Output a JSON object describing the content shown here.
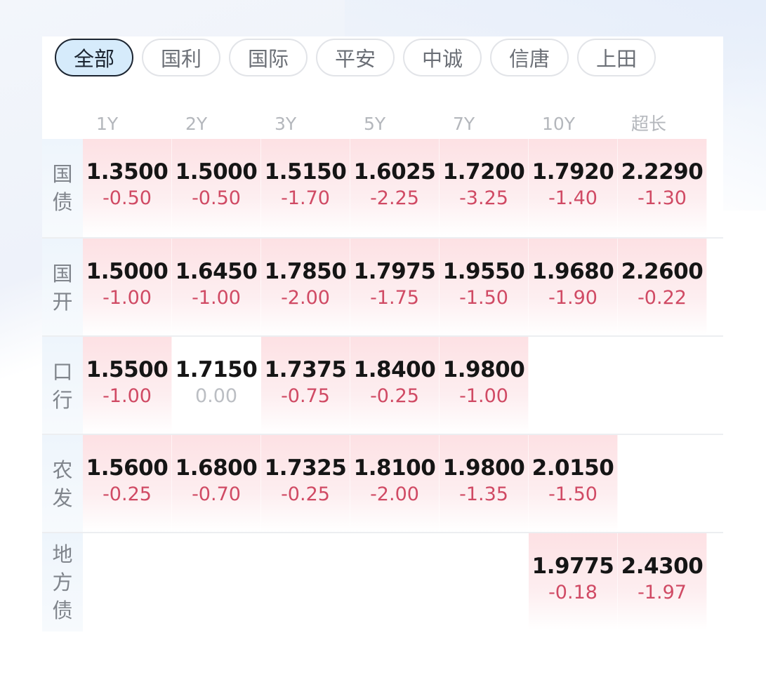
{
  "tabs": [
    {
      "label": "全部",
      "active": true
    },
    {
      "label": "国利"
    },
    {
      "label": "国际"
    },
    {
      "label": "平安"
    },
    {
      "label": "中诚"
    },
    {
      "label": "信唐"
    },
    {
      "label": "上田"
    }
  ],
  "columns": [
    "1Y",
    "2Y",
    "3Y",
    "5Y",
    "7Y",
    "10Y",
    "超长"
  ],
  "colors": {
    "up_bg": "#fde1e4",
    "change": "#d04a64",
    "flat": "#bbbec3"
  },
  "rows": [
    {
      "label": "国债",
      "cells": [
        {
          "v": "1.3500",
          "c": "-0.50"
        },
        {
          "v": "1.5000",
          "c": "-0.50"
        },
        {
          "v": "1.5150",
          "c": "-1.70"
        },
        {
          "v": "1.6025",
          "c": "-2.25"
        },
        {
          "v": "1.7200",
          "c": "-3.25"
        },
        {
          "v": "1.7920",
          "c": "-1.40"
        },
        {
          "v": "2.2290",
          "c": "-1.30"
        }
      ]
    },
    {
      "label": "国开",
      "cells": [
        {
          "v": "1.5000",
          "c": "-1.00"
        },
        {
          "v": "1.6450",
          "c": "-1.00"
        },
        {
          "v": "1.7850",
          "c": "-2.00"
        },
        {
          "v": "1.7975",
          "c": "-1.75"
        },
        {
          "v": "1.9550",
          "c": "-1.50"
        },
        {
          "v": "1.9680",
          "c": "-1.90"
        },
        {
          "v": "2.2600",
          "c": "-0.22"
        }
      ]
    },
    {
      "label": "口行",
      "cells": [
        {
          "v": "1.5500",
          "c": "-1.00"
        },
        {
          "v": "1.7150",
          "c": "0.00"
        },
        {
          "v": "1.7375",
          "c": "-0.75"
        },
        {
          "v": "1.8400",
          "c": "-0.25"
        },
        {
          "v": "1.9800",
          "c": "-1.00"
        },
        null,
        null
      ]
    },
    {
      "label": "农发",
      "cells": [
        {
          "v": "1.5600",
          "c": "-0.25"
        },
        {
          "v": "1.6800",
          "c": "-0.70"
        },
        {
          "v": "1.7325",
          "c": "-0.25"
        },
        {
          "v": "1.8100",
          "c": "-2.00"
        },
        {
          "v": "1.9800",
          "c": "-1.35"
        },
        {
          "v": "2.0150",
          "c": "-1.50"
        },
        null
      ]
    },
    {
      "label": "地方债",
      "cells": [
        null,
        null,
        null,
        null,
        null,
        {
          "v": "1.9775",
          "c": "-0.18"
        },
        {
          "v": "2.4300",
          "c": "-1.97"
        }
      ]
    }
  ]
}
